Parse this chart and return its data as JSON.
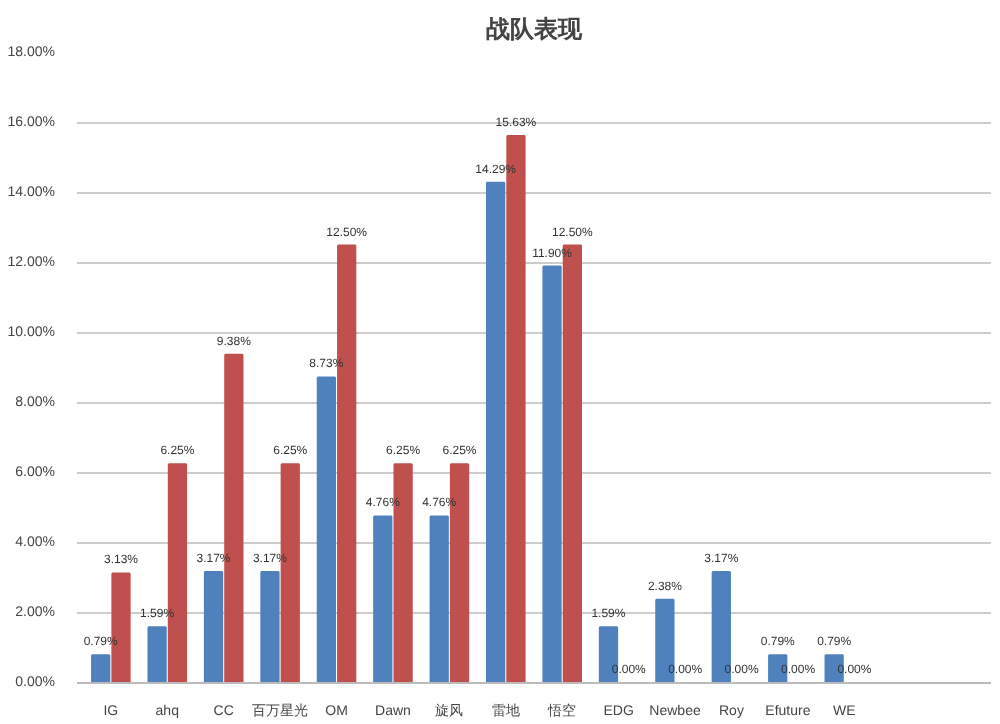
{
  "chart_data": {
    "type": "bar",
    "title": "战队表现",
    "categories": [
      "IG",
      "ahq",
      "CC",
      "百万星光",
      "OM",
      "Dawn",
      "旋风",
      "雷地",
      "悟空",
      "EDG",
      "Newbee",
      "Roy",
      "Efuture",
      "WE"
    ],
    "series": [
      {
        "color": "#4f81bd",
        "values": [
          0.79,
          1.59,
          3.17,
          3.17,
          8.73,
          4.76,
          4.76,
          14.29,
          11.9,
          1.59,
          2.38,
          3.17,
          0.79,
          0.79
        ],
        "value_labels": [
          "0.79%",
          "1.59%",
          "3.17%",
          "3.17%",
          "8.73%",
          "4.76%",
          "4.76%",
          "14.29%",
          "11.90%",
          "1.59%",
          "2.38%",
          "3.17%",
          "0.79%",
          "0.79%"
        ]
      },
      {
        "color": "#c0504d",
        "values": [
          3.13,
          6.25,
          9.38,
          6.25,
          12.5,
          6.25,
          6.25,
          15.63,
          12.5,
          0,
          0,
          0,
          0,
          0
        ],
        "value_labels": [
          "3.13%",
          "6.25%",
          "9.38%",
          "6.25%",
          "12.50%",
          "6.25%",
          "6.25%",
          "15.63%",
          "12.50%",
          "0.00%",
          "0.00%",
          "0.00%",
          "0.00%",
          "0.00%"
        ]
      }
    ],
    "ylim": [
      0,
      18
    ],
    "yticks": [
      {
        "value": 0,
        "label": "0.00%"
      },
      {
        "value": 2,
        "label": "2.00%"
      },
      {
        "value": 4,
        "label": "4.00%"
      },
      {
        "value": 6,
        "label": "6.00%"
      },
      {
        "value": 8,
        "label": "8.00%"
      },
      {
        "value": 10,
        "label": "10.00%"
      },
      {
        "value": 12,
        "label": "12.00%"
      },
      {
        "value": 14,
        "label": "14.00%"
      },
      {
        "value": 16,
        "label": "16.00%"
      },
      {
        "value": 18,
        "label": "18.00%"
      }
    ],
    "grid": "y"
  }
}
